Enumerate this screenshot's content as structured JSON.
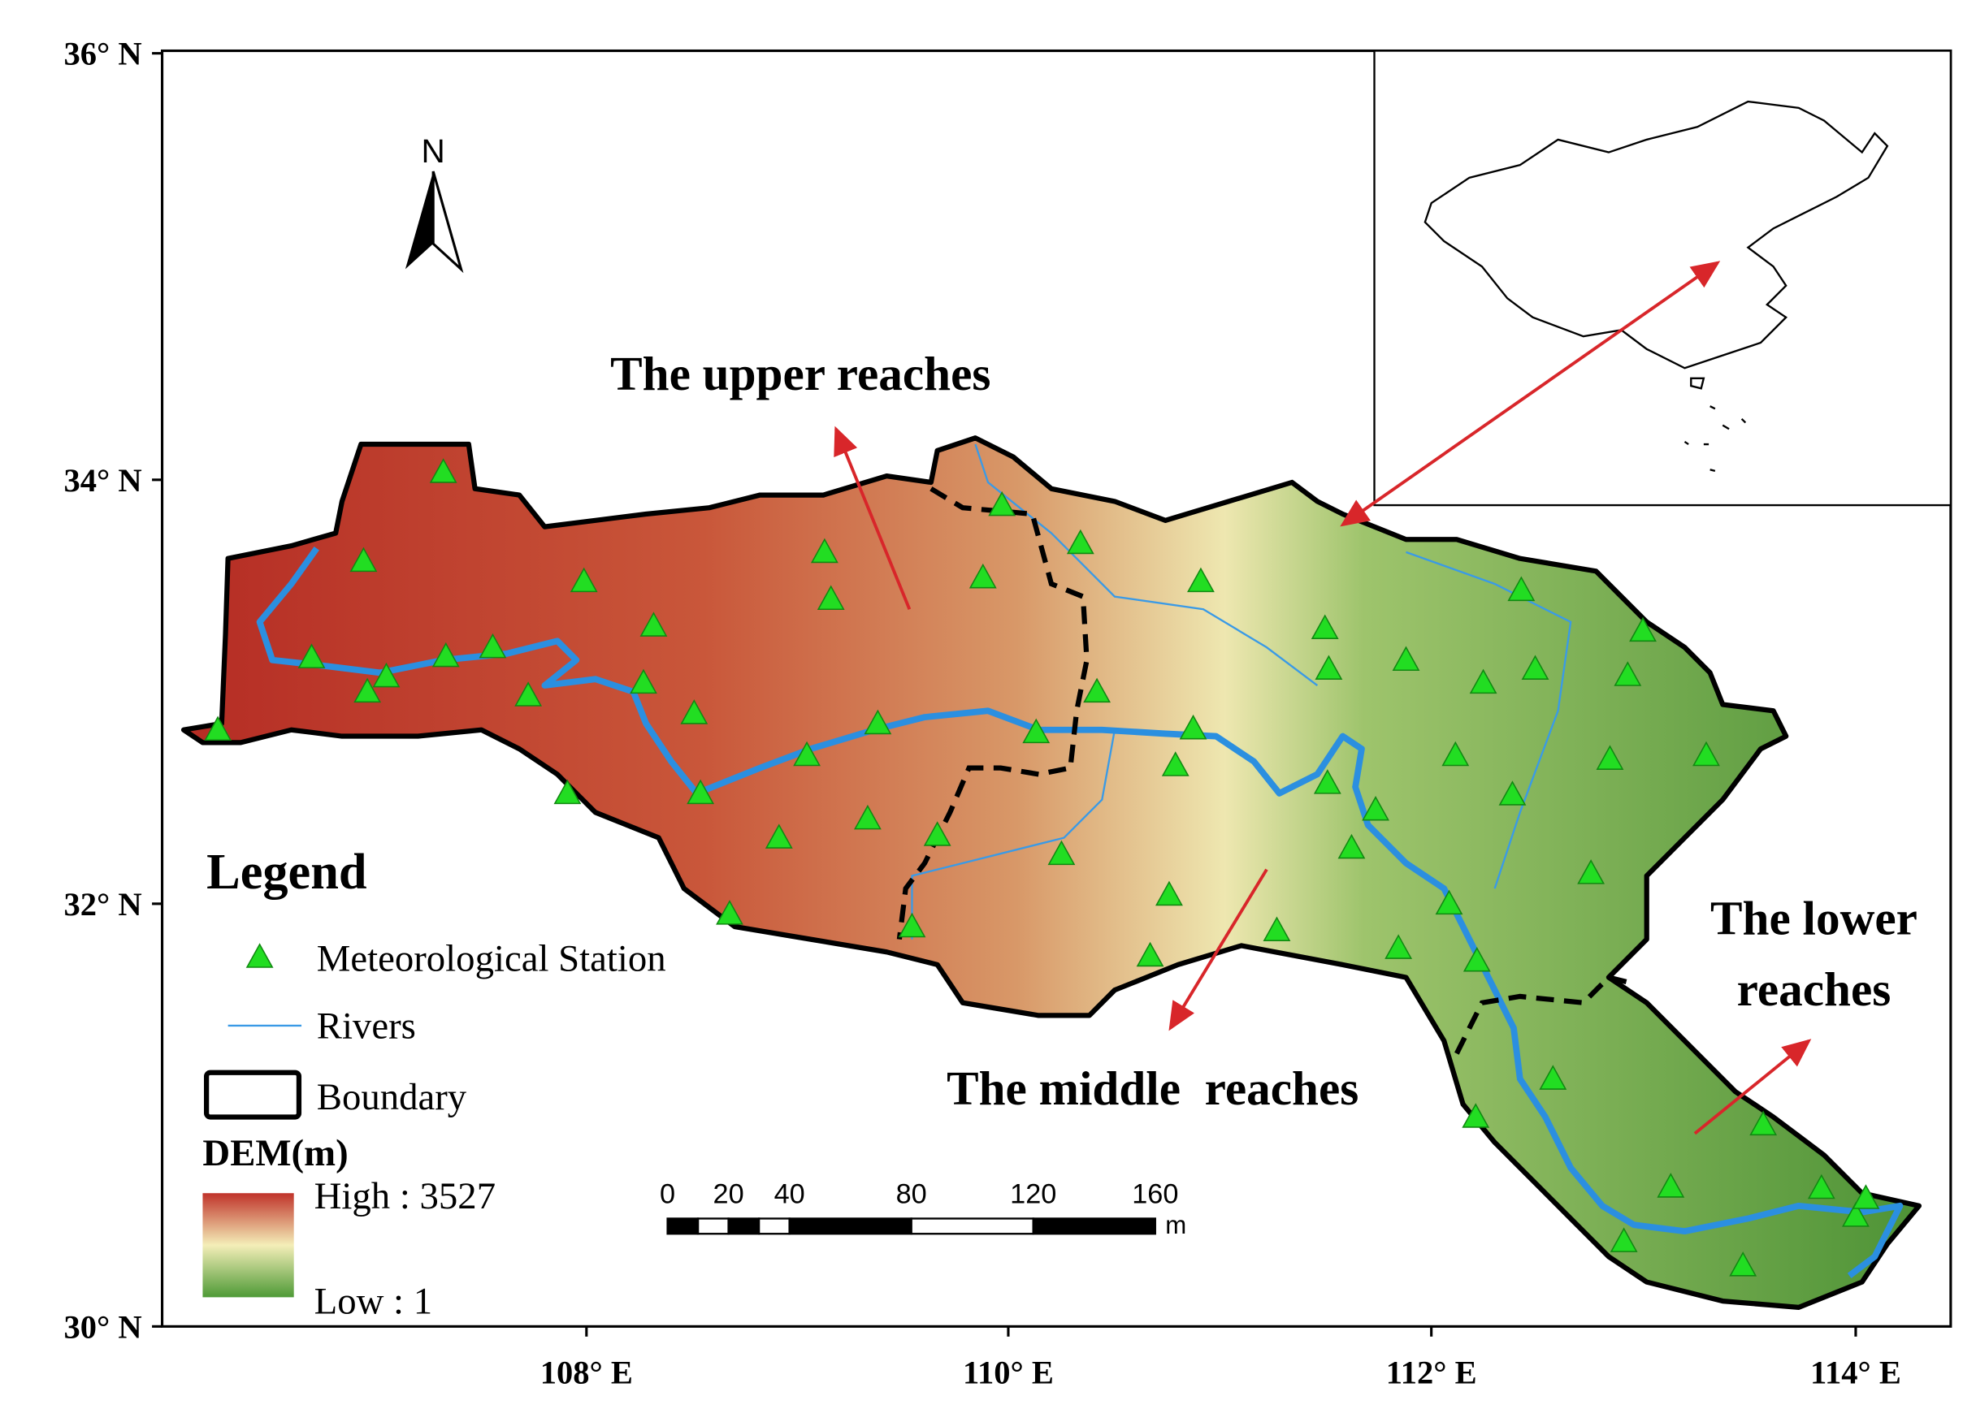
{
  "map": {
    "lat_labels": [
      "36° N",
      "34° N",
      "32° N",
      "30° N"
    ],
    "lon_labels": [
      "108° E",
      "110° E",
      "112° E",
      "114° E"
    ],
    "north_label": "N",
    "annotations": {
      "upper": "The upper reaches",
      "middle": "The middle  reaches",
      "lower": [
        "The lower",
        "reaches"
      ]
    },
    "legend": {
      "title": "Legend",
      "items": [
        "Meteorological Station",
        "Rivers",
        "Boundary"
      ],
      "dem_title": "DEM(m)",
      "high": "High : 3527",
      "low": "Low : 1"
    },
    "scale_bar": {
      "ticks": [
        0,
        20,
        40,
        80,
        120,
        160
      ],
      "unit": "m"
    }
  }
}
